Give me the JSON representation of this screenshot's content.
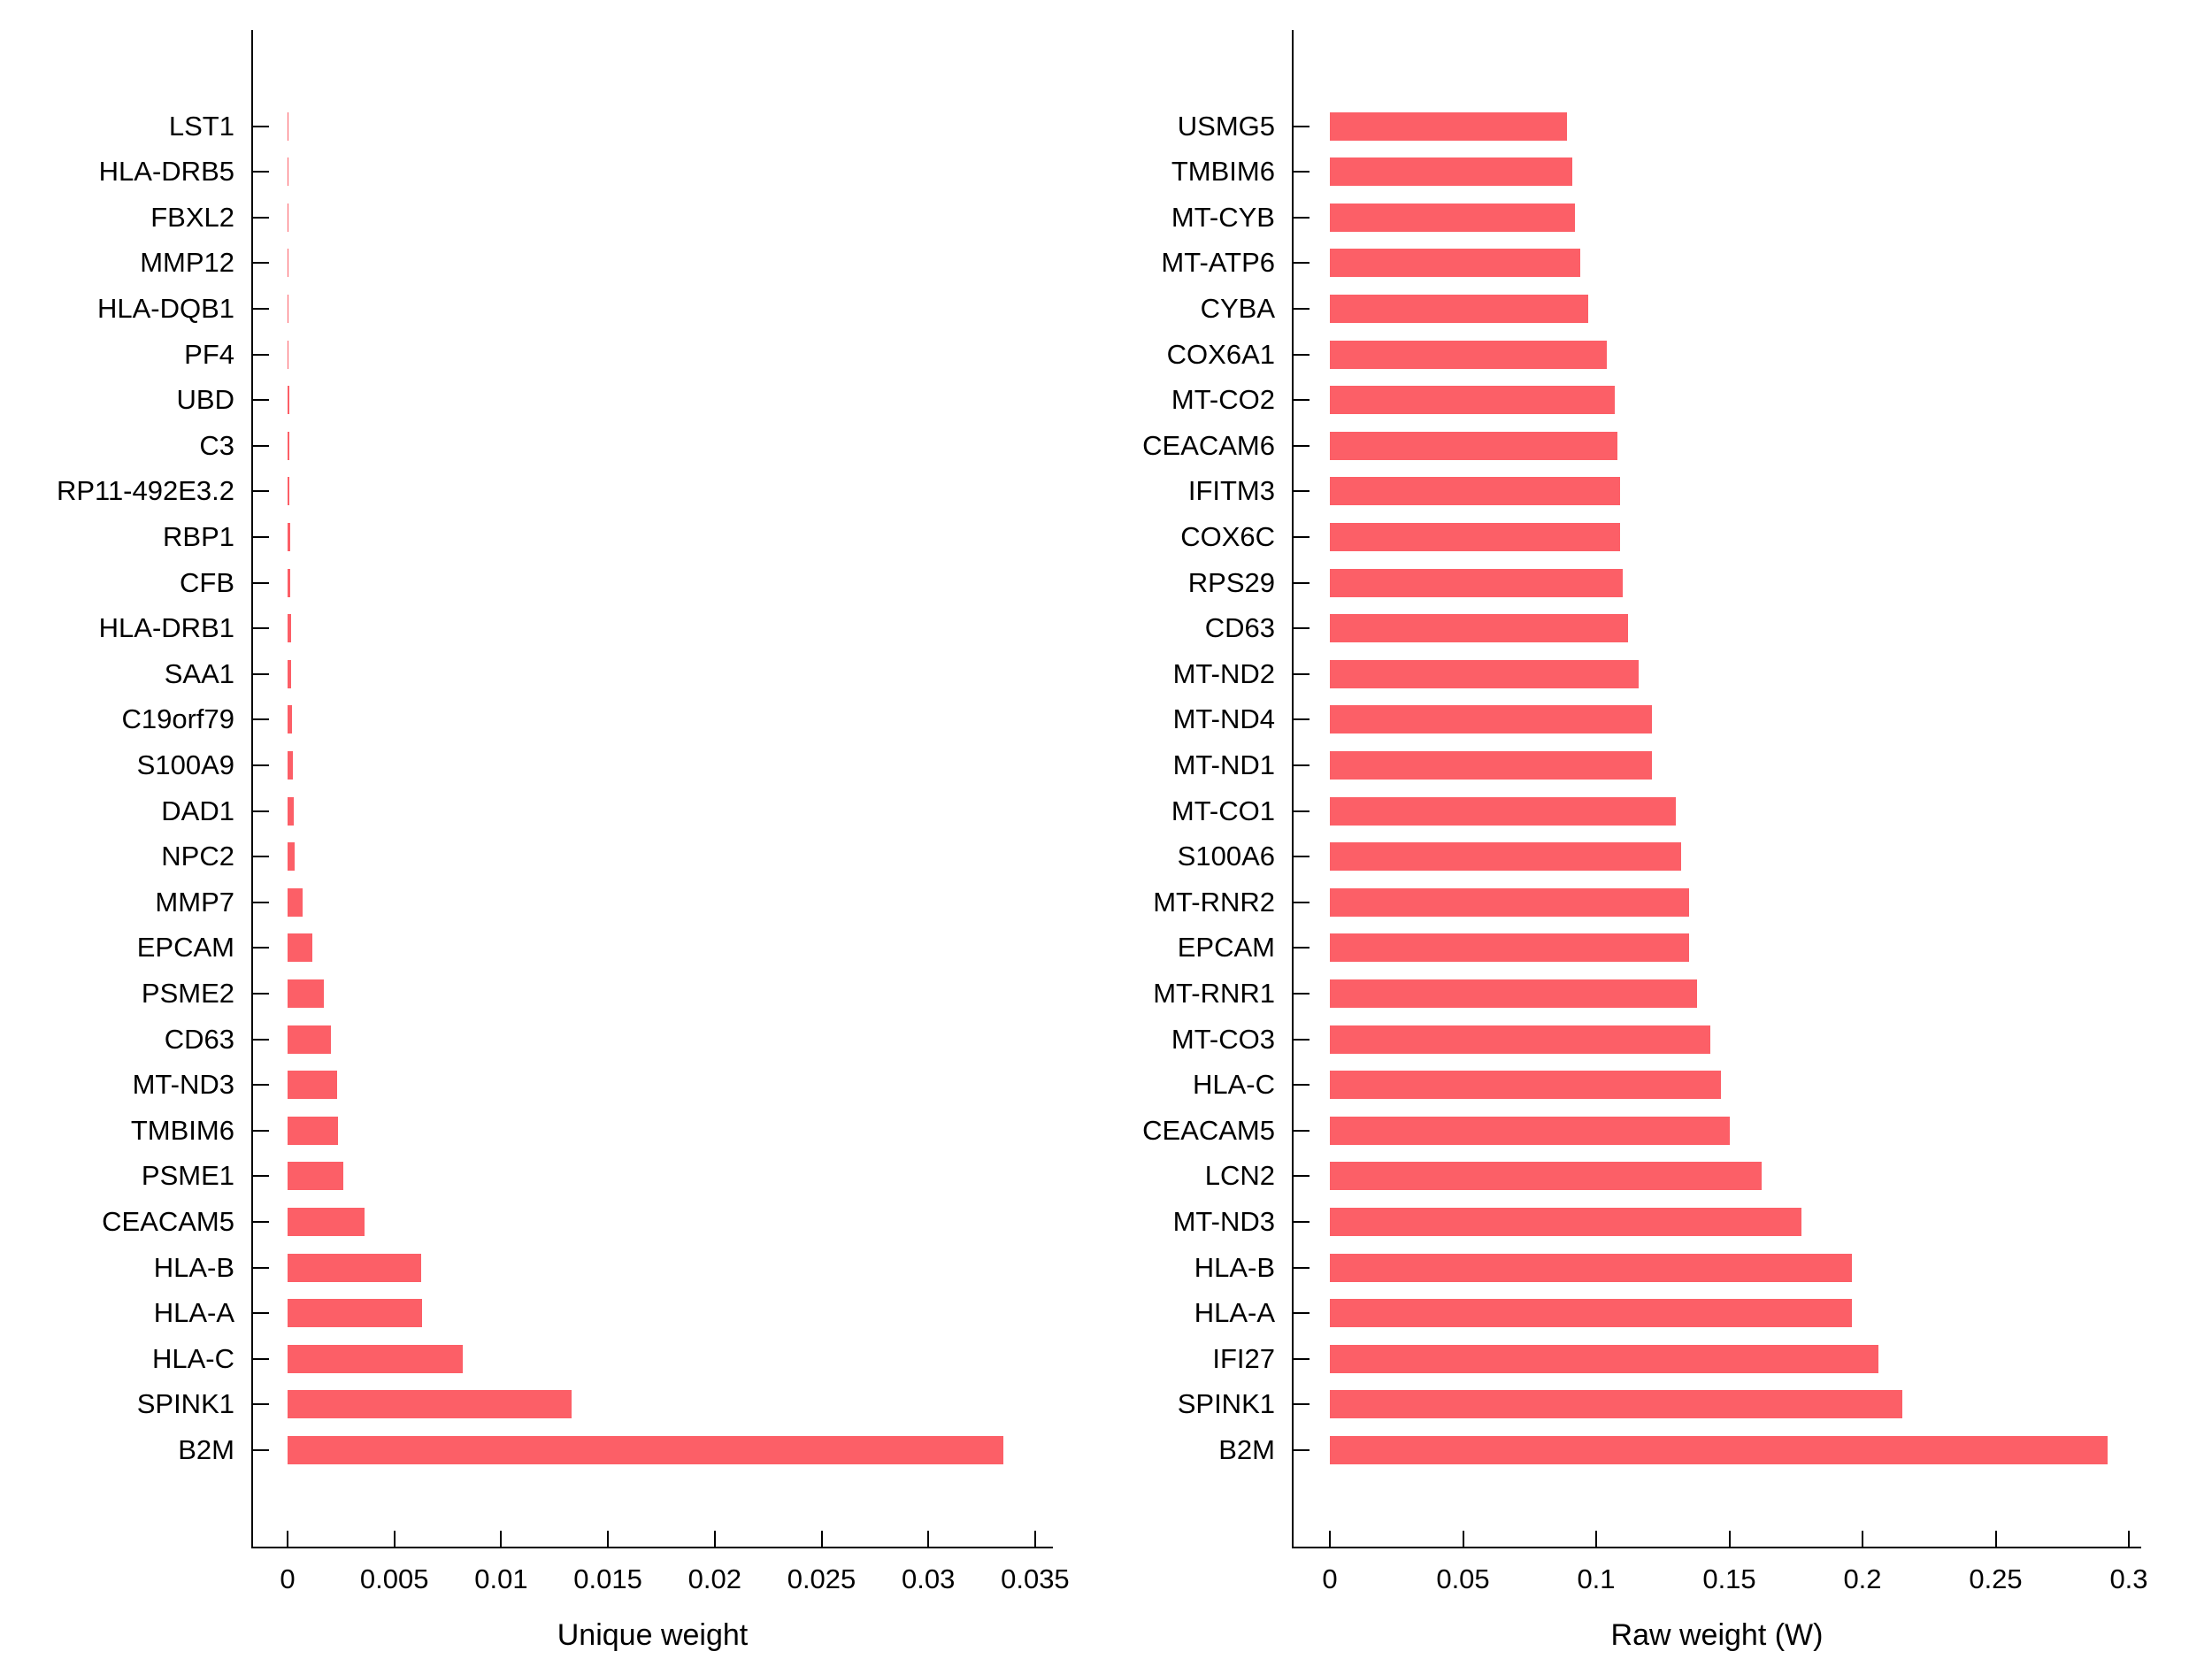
{
  "figure": {
    "background": "#ffffff",
    "bar_color": "#fc5f67",
    "axis_color": "#000000",
    "text_color": "#000000"
  },
  "chart_data": [
    {
      "type": "bar",
      "orientation": "horizontal",
      "title": "",
      "xlabel": "Unique weight",
      "ylabel": "",
      "grid": false,
      "legend": null,
      "xlim": [
        0,
        0.0358
      ],
      "xticks": [
        0,
        0.005,
        0.01,
        0.015,
        0.02,
        0.025,
        0.03,
        0.035
      ],
      "xtick_labels": [
        "0",
        "0.005",
        "0.01",
        "0.015",
        "0.02",
        "0.025",
        "0.03",
        "0.035"
      ],
      "categories": [
        "LST1",
        "HLA-DRB5",
        "FBXL2",
        "MMP12",
        "HLA-DQB1",
        "PF4",
        "UBD",
        "C3",
        "RP11-492E3.2",
        "RBP1",
        "CFB",
        "HLA-DRB1",
        "SAA1",
        "C19orf79",
        "S100A9",
        "DAD1",
        "NPC2",
        "MMP7",
        "EPCAM",
        "PSME2",
        "CD63",
        "MT-ND3",
        "TMBIM6",
        "PSME1",
        "CEACAM5",
        "HLA-B",
        "HLA-A",
        "HLA-C",
        "SPINK1",
        "B2M"
      ],
      "values": [
        4e-06,
        7e-06,
        1e-05,
        1.5e-05,
        5e-05,
        6e-05,
        7e-05,
        8e-05,
        0.0001,
        0.00011,
        0.00012,
        0.00015,
        0.00017,
        0.0002,
        0.00024,
        0.0003,
        0.00034,
        0.0007,
        0.00116,
        0.00168,
        0.00204,
        0.0023,
        0.00237,
        0.0026,
        0.0036,
        0.00626,
        0.0063,
        0.0082,
        0.0133,
        0.0335
      ]
    },
    {
      "type": "bar",
      "orientation": "horizontal",
      "title": "",
      "xlabel": "Raw weight (W)",
      "ylabel": "",
      "grid": false,
      "legend": null,
      "xlim": [
        0,
        0.305
      ],
      "xticks": [
        0,
        0.05,
        0.1,
        0.15,
        0.2,
        0.25,
        0.3
      ],
      "xtick_labels": [
        "0",
        "0.05",
        "0.1",
        "0.15",
        "0.2",
        "0.25",
        "0.3"
      ],
      "categories": [
        "USMG5",
        "TMBIM6",
        "MT-CYB",
        "MT-ATP6",
        "CYBA",
        "COX6A1",
        "MT-CO2",
        "CEACAM6",
        "IFITM3",
        "COX6C",
        "RPS29",
        "CD63",
        "MT-ND2",
        "MT-ND4",
        "MT-ND1",
        "MT-CO1",
        "S100A6",
        "MT-RNR2",
        "EPCAM",
        "MT-RNR1",
        "MT-CO3",
        "HLA-C",
        "CEACAM5",
        "LCN2",
        "MT-ND3",
        "HLA-B",
        "HLA-A",
        "IFI27",
        "SPINK1",
        "B2M"
      ],
      "values": [
        0.089,
        0.091,
        0.092,
        0.094,
        0.097,
        0.104,
        0.107,
        0.108,
        0.109,
        0.109,
        0.11,
        0.112,
        0.116,
        0.121,
        0.121,
        0.13,
        0.132,
        0.135,
        0.135,
        0.138,
        0.143,
        0.147,
        0.15,
        0.162,
        0.177,
        0.196,
        0.196,
        0.206,
        0.215,
        0.292
      ]
    }
  ]
}
